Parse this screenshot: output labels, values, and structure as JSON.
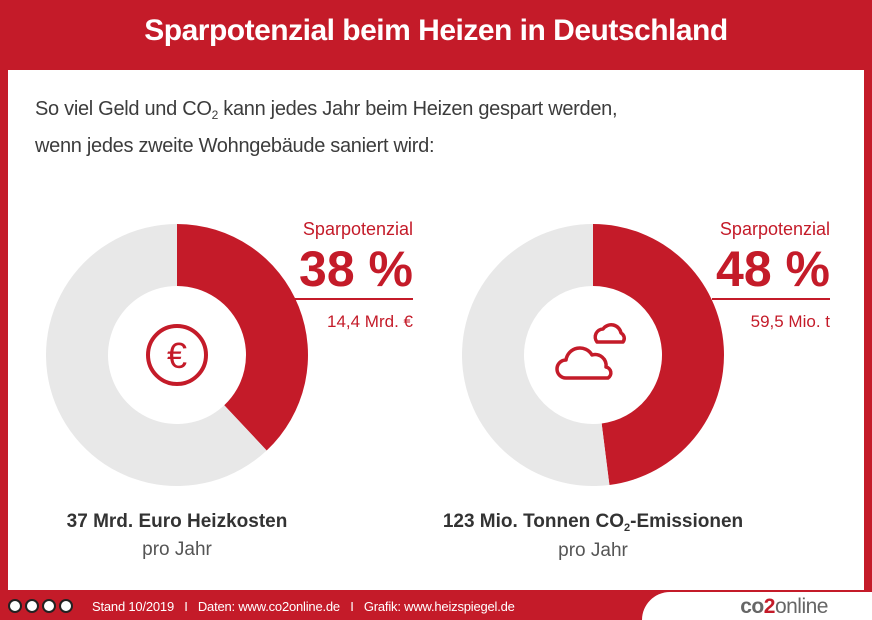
{
  "title": "Sparpotenzial beim Heizen in Deutschland",
  "intro": {
    "line1_a": "So viel Geld und CO",
    "line1_sub": "2",
    "line1_b": " kann jedes Jahr beim Heizen gespart werden,",
    "line2": "wenn jedes zweite Wohngebäude saniert wird:"
  },
  "colors": {
    "accent": "#c41b29",
    "remainder": "#e8e8e8"
  },
  "chart_data": [
    {
      "type": "pie",
      "style": "donut",
      "values": [
        38,
        62
      ],
      "label": "Sparpotenzial",
      "value_text": "38 %",
      "absolute": "14,4 Mrd. €",
      "caption": "37 Mrd. Euro Heizkosten",
      "caption_sub": "pro Jahr",
      "icon": "euro-icon"
    },
    {
      "type": "pie",
      "style": "donut",
      "values": [
        48,
        52
      ],
      "label": "Sparpotenzial",
      "value_text": "48 %",
      "absolute": "59,5 Mio. t",
      "caption_a": "123 Mio. Tonnen CO",
      "caption_sub2": "2",
      "caption_b": "-Emissionen",
      "caption_sub": "pro Jahr",
      "icon": "clouds-icon"
    }
  ],
  "footer": {
    "text": "Stand 10/2019   I   Daten: www.co2online.de   I   Grafik: www.heizspiegel.de",
    "logo_a": "co",
    "logo_b": "2",
    "logo_c": "online",
    "license_icons": [
      "cc-icon",
      "by-icon",
      "nc-icon",
      "nd-icon"
    ]
  }
}
